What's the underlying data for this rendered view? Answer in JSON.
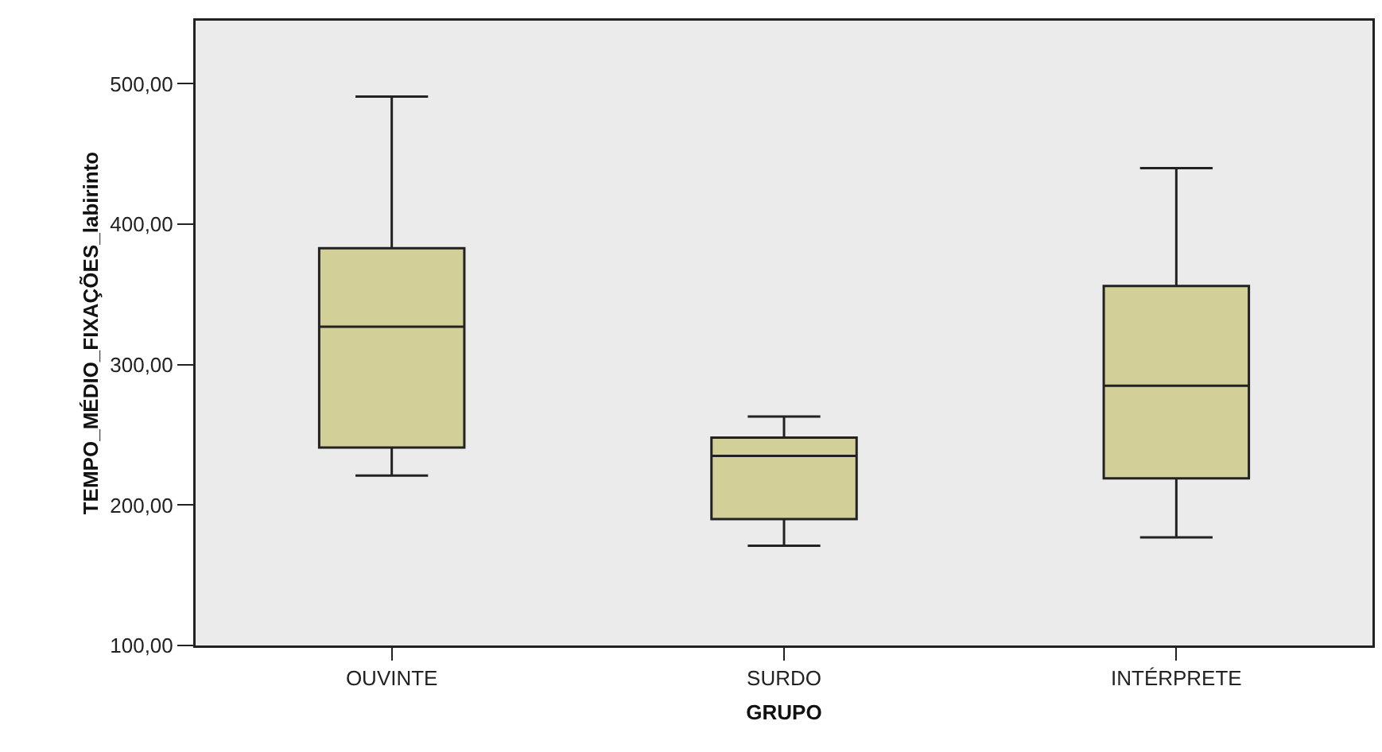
{
  "chart_data": {
    "type": "box",
    "xlabel": "GRUPO",
    "ylabel": "TEMPO_MÉDIO_FIXAÇÕES_labirinto",
    "categories": [
      "OUVINTE",
      "SURDO",
      "INTÉRPRETE"
    ],
    "boxes": [
      {
        "low": 221,
        "q1": 241,
        "median": 327,
        "q3": 383,
        "high": 491
      },
      {
        "low": 171,
        "q1": 190,
        "median": 235,
        "q3": 248,
        "high": 263
      },
      {
        "low": 177,
        "q1": 219,
        "median": 285,
        "q3": 356,
        "high": 440
      }
    ],
    "color": "#d3cf98",
    "ylim": [
      100,
      545
    ],
    "yticks": [
      {
        "value": 100,
        "label": "100,00"
      },
      {
        "value": 200,
        "label": "200,00"
      },
      {
        "value": 300,
        "label": "300,00"
      },
      {
        "value": 400,
        "label": "400,00"
      },
      {
        "value": 500,
        "label": "500,00"
      }
    ],
    "grid": false
  }
}
